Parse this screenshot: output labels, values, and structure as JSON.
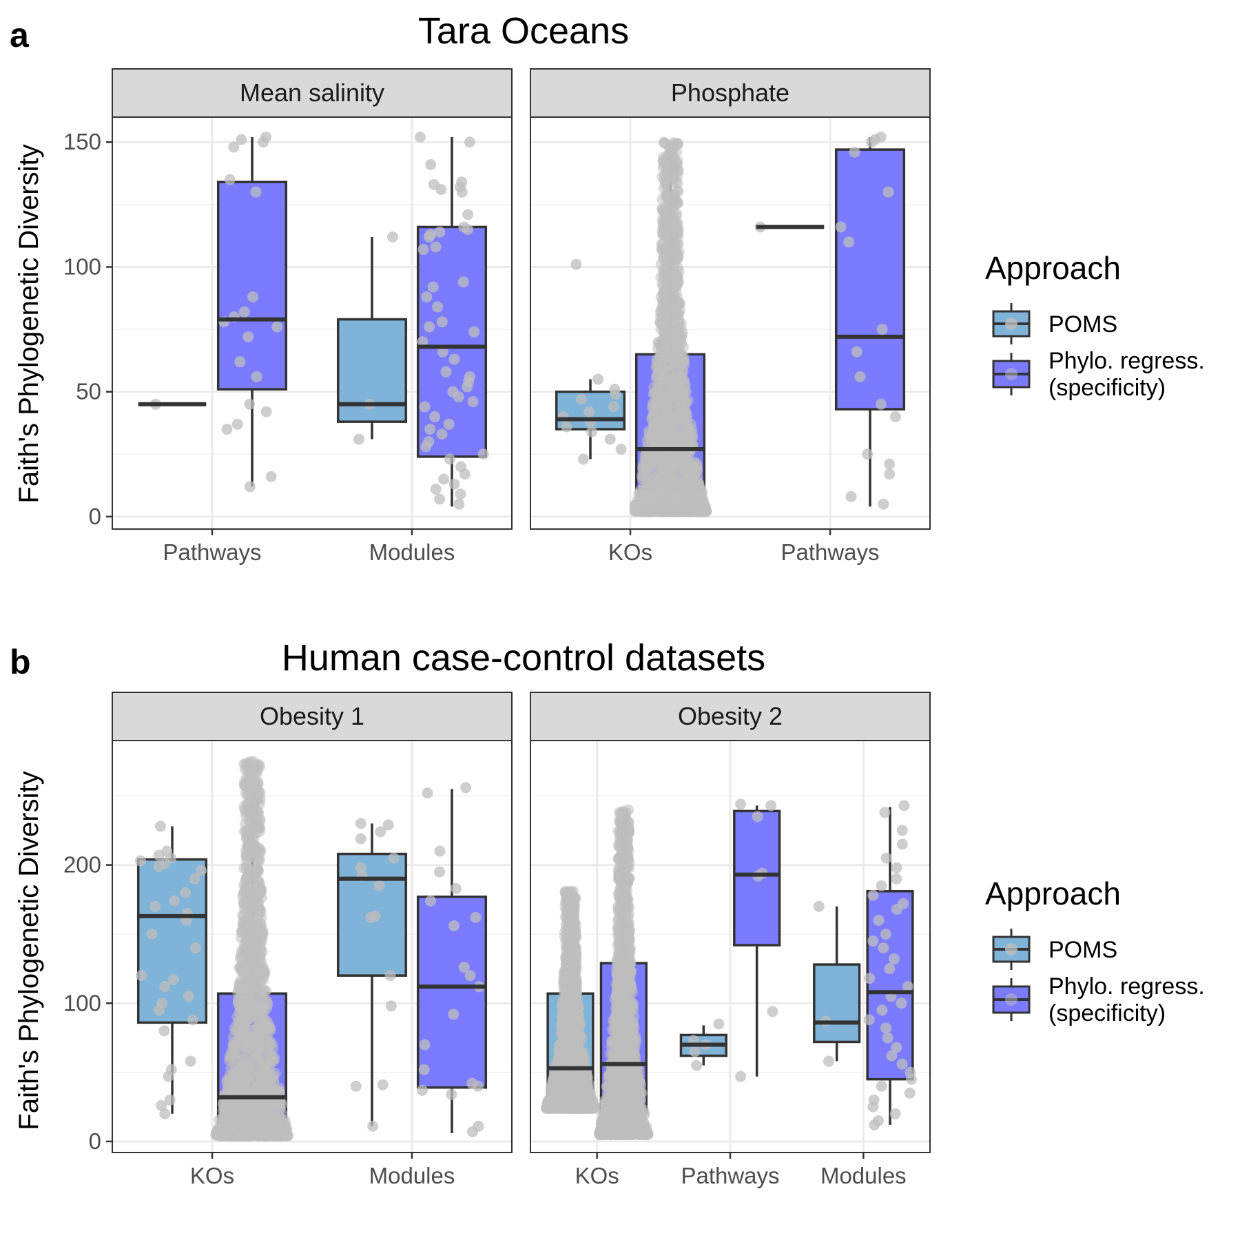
{
  "figure": {
    "panels": [
      {
        "letter": "a",
        "title": "Tara Oceans",
        "ylabel": "Faith's Phylogenetic Diversity"
      },
      {
        "letter": "b",
        "title": "Human case-control datasets",
        "ylabel": "Faith's Phylogenetic Diversity"
      }
    ],
    "legend": {
      "title": "Approach",
      "items": [
        "POMS",
        "Phylo. regress.",
        "(specificity)"
      ]
    }
  },
  "colors": {
    "poms": "#7fb3d8",
    "phylo": "#7b7bff",
    "points": "#bdbdbd",
    "outline": "#333333",
    "strip_bg": "#d9d9d9",
    "grid": "#ebebeb"
  },
  "chart_data": [
    {
      "type": "box",
      "panel": "a",
      "facet": "Mean salinity",
      "categories": [
        "Pathways",
        "Modules"
      ],
      "ylim": [
        -5,
        160
      ],
      "yticks": [
        0,
        50,
        100,
        150
      ],
      "series": [
        {
          "name": "POMS",
          "boxes": [
            {
              "category": "Pathways",
              "min": 45,
              "q1": 45,
              "median": 45,
              "q3": 45,
              "max": 45,
              "points": [
                45
              ]
            },
            {
              "category": "Modules",
              "min": 31,
              "q1": 38,
              "median": 45,
              "q3": 79,
              "max": 112,
              "points": [
                112,
                45,
                31
              ]
            }
          ]
        },
        {
          "name": "Phylo. regress. (specificity)",
          "boxes": [
            {
              "category": "Pathways",
              "min": 12,
              "q1": 51,
              "median": 79,
              "q3": 134,
              "max": 152,
              "points": [
                152,
                151,
                150,
                148,
                135,
                130,
                88,
                82,
                80,
                78,
                76,
                72,
                62,
                56,
                45,
                42,
                37,
                35,
                16,
                12
              ]
            },
            {
              "category": "Modules",
              "min": 4,
              "q1": 24,
              "median": 68,
              "q3": 116,
              "max": 152,
              "points": [
                152,
                150,
                141,
                134,
                133,
                132,
                131,
                130,
                121,
                116,
                115,
                114,
                113,
                112,
                108,
                107,
                94,
                92,
                88,
                84,
                78,
                76,
                74,
                70,
                66,
                63,
                58,
                56,
                54,
                52,
                50,
                48,
                46,
                44,
                40,
                37,
                35,
                33,
                30,
                28,
                25,
                23,
                20,
                17,
                15,
                13,
                11,
                9,
                7,
                5
              ]
            }
          ]
        }
      ]
    },
    {
      "type": "box",
      "panel": "a",
      "facet": "Phosphate",
      "categories": [
        "KOs",
        "Pathways"
      ],
      "ylim": [
        -5,
        160
      ],
      "yticks": [
        0,
        50,
        100,
        150
      ],
      "series": [
        {
          "name": "POMS",
          "boxes": [
            {
              "category": "KOs",
              "min": 23,
              "q1": 35,
              "median": 39,
              "q3": 50,
              "max": 55,
              "points": [
                101,
                55,
                51,
                49,
                47,
                44,
                42,
                40,
                38,
                36,
                34,
                31,
                27,
                23
              ]
            },
            {
              "category": "Pathways",
              "min": 116,
              "q1": 116,
              "median": 116,
              "q3": 116,
              "max": 116,
              "points": [
                116
              ]
            }
          ]
        },
        {
          "name": "Phylo. regress. (specificity)",
          "boxes": [
            {
              "category": "KOs",
              "min": 2,
              "q1": 11,
              "median": 27,
              "q3": 65,
              "max": 145,
              "dense": true,
              "densemax": 150
            },
            {
              "category": "Pathways",
              "min": 4,
              "q1": 43,
              "median": 72,
              "q3": 147,
              "max": 152,
              "points": [
                152,
                151,
                150,
                146,
                130,
                116,
                110,
                75,
                66,
                56,
                45,
                40,
                25,
                21,
                17,
                8,
                5
              ]
            }
          ]
        }
      ]
    },
    {
      "type": "box",
      "panel": "b",
      "facet": "Obesity 1",
      "categories": [
        "KOs",
        "Modules"
      ],
      "ylim": [
        -8,
        290
      ],
      "yticks": [
        0,
        100,
        200
      ],
      "series": [
        {
          "name": "POMS",
          "boxes": [
            {
              "category": "KOs",
              "min": 20,
              "q1": 86,
              "median": 163,
              "q3": 204,
              "max": 228,
              "points": [
                228,
                210,
                207,
                205,
                203,
                201,
                199,
                196,
                190,
                180,
                174,
                170,
                165,
                160,
                150,
                140,
                120,
                117,
                112,
                105,
                100,
                95,
                88,
                80,
                58,
                52,
                47,
                30,
                26,
                20
              ]
            },
            {
              "category": "Modules",
              "min": 11,
              "q1": 120,
              "median": 190,
              "q3": 208,
              "max": 230,
              "points": [
                230,
                229,
                224,
                219,
                205,
                198,
                192,
                185,
                163,
                162,
                120,
                98,
                41,
                40,
                11
              ]
            }
          ]
        },
        {
          "name": "Phylo. regress. (specificity)",
          "boxes": [
            {
              "category": "KOs",
              "min": 4,
              "q1": 14,
              "median": 32,
              "q3": 107,
              "max": 245,
              "dense": true,
              "densemax": 275
            },
            {
              "category": "Modules",
              "min": 6,
              "q1": 39,
              "median": 112,
              "q3": 177,
              "max": 255,
              "points": [
                256,
                252,
                210,
                195,
                183,
                174,
                162,
                156,
                126,
                120,
                112,
                92,
                70,
                52,
                42,
                40,
                37,
                34,
                11,
                7
              ]
            }
          ]
        }
      ]
    },
    {
      "type": "box",
      "panel": "b",
      "facet": "Obesity 2",
      "categories": [
        "KOs",
        "Pathways",
        "Modules"
      ],
      "ylim": [
        -8,
        290
      ],
      "yticks": [
        0,
        100,
        200
      ],
      "series": [
        {
          "name": "POMS",
          "boxes": [
            {
              "category": "KOs",
              "min": 24,
              "q1": 34,
              "median": 53,
              "q3": 107,
              "max": 180,
              "dense": true,
              "densemax": 181
            },
            {
              "category": "Pathways",
              "min": 55,
              "q1": 62,
              "median": 70,
              "q3": 77,
              "max": 84,
              "points": [
                85,
                73,
                70,
                65,
                55
              ]
            },
            {
              "category": "Modules",
              "min": 58,
              "q1": 72,
              "median": 86,
              "q3": 128,
              "max": 170,
              "points": [
                170,
                87,
                58
              ]
            }
          ]
        },
        {
          "name": "Phylo. regress. (specificity)",
          "boxes": [
            {
              "category": "KOs",
              "min": 5,
              "q1": 21,
              "median": 56,
              "q3": 129,
              "max": 238,
              "dense": true,
              "densemax": 240
            },
            {
              "category": "Pathways",
              "min": 47,
              "q1": 142,
              "median": 193,
              "q3": 239,
              "max": 243,
              "points": [
                244,
                243,
                235,
                194,
                192,
                94,
                47
              ]
            },
            {
              "category": "Modules",
              "min": 12,
              "q1": 45,
              "median": 108,
              "q3": 181,
              "max": 242,
              "points": [
                243,
                238,
                225,
                215,
                205,
                198,
                190,
                185,
                178,
                172,
                168,
                160,
                150,
                145,
                140,
                132,
                125,
                118,
                112,
                105,
                100,
                95,
                88,
                82,
                75,
                68,
                62,
                56,
                50,
                45,
                40,
                35,
                30,
                25,
                20,
                15,
                12
              ]
            }
          ]
        }
      ]
    }
  ]
}
